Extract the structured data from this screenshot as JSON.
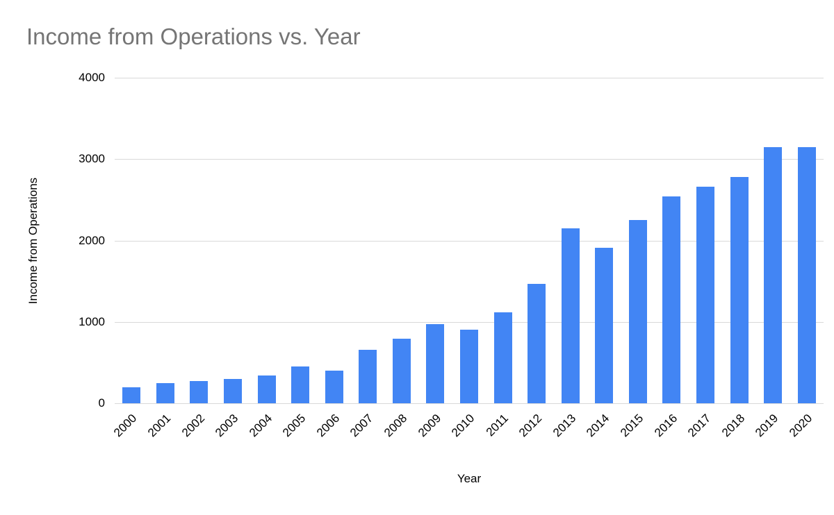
{
  "chart_data": {
    "type": "bar",
    "title": "Income from Operations vs. Year",
    "xlabel": "Year",
    "ylabel": "Income from Operations",
    "categories": [
      "2000",
      "2001",
      "2002",
      "2003",
      "2004",
      "2005",
      "2006",
      "2007",
      "2008",
      "2009",
      "2010",
      "2011",
      "2012",
      "2013",
      "2014",
      "2015",
      "2016",
      "2017",
      "2018",
      "2019",
      "2020"
    ],
    "values": [
      200,
      250,
      270,
      300,
      340,
      450,
      400,
      660,
      790,
      970,
      900,
      1120,
      1470,
      2150,
      1910,
      2250,
      2540,
      2660,
      2780,
      3150,
      3150
    ],
    "ylim": [
      0,
      4000
    ],
    "yticks": [
      0,
      1000,
      2000,
      3000,
      4000
    ],
    "grid": true,
    "legend": "none",
    "bar_color": "#4285f4",
    "title_color": "#757575",
    "gridline_color": "#d9d9d9"
  }
}
